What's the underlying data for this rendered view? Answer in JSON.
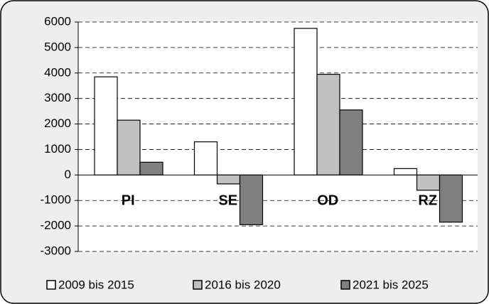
{
  "chart_data": {
    "type": "bar",
    "categories": [
      "PI",
      "SE",
      "OD",
      "RZ"
    ],
    "series": [
      {
        "name": "2009 bis 2015",
        "color": "#ffffff",
        "values": [
          3850,
          1300,
          5750,
          250
        ]
      },
      {
        "name": "2016 bis 2020",
        "color": "#c0c0c0",
        "values": [
          2150,
          -350,
          3950,
          -600
        ]
      },
      {
        "name": "2021 bis 2025",
        "color": "#808080",
        "values": [
          500,
          -1950,
          2550,
          -1850
        ]
      }
    ],
    "ylim": [
      -3000,
      6000
    ],
    "yticks": [
      -3000,
      -2000,
      -1000,
      0,
      1000,
      2000,
      3000,
      4000,
      5000,
      6000
    ],
    "grid": true,
    "legend": "bottom"
  }
}
